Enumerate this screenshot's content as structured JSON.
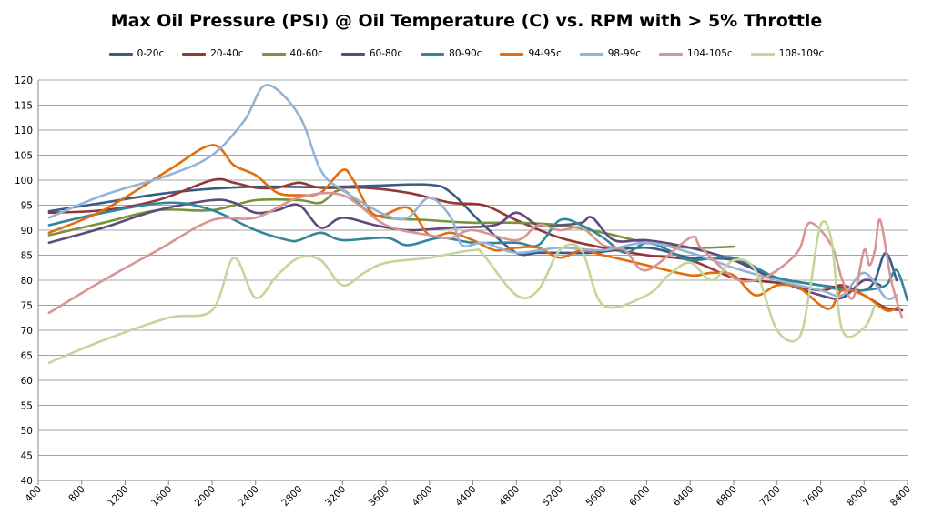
{
  "chart_data": {
    "type": "line",
    "title": "Max Oil Pressure (PSI) @ Oil Temperature (C) vs. RPM with > 5% Throttle",
    "xlabel": "",
    "ylabel": "",
    "xlim": [
      400,
      8400
    ],
    "ylim": [
      40,
      120
    ],
    "x_ticks": [
      400,
      800,
      1200,
      1600,
      2000,
      2400,
      2800,
      3200,
      3600,
      4000,
      4400,
      4800,
      5200,
      5600,
      6000,
      6400,
      6800,
      7200,
      7600,
      8000,
      8400
    ],
    "y_ticks": [
      40,
      45,
      50,
      55,
      60,
      65,
      70,
      75,
      80,
      85,
      90,
      95,
      100,
      105,
      110,
      115,
      120
    ],
    "grid": "horizontal",
    "legend": "top",
    "smooth": true,
    "series": [
      {
        "name": "0-20c",
        "color": "#385D8A",
        "points": [
          [
            500,
            93.8
          ],
          [
            1000,
            95.5
          ],
          [
            1500,
            97.2
          ],
          [
            2000,
            98.3
          ],
          [
            2500,
            98.7
          ],
          [
            3000,
            98.6
          ],
          [
            3500,
            98.9
          ],
          [
            4000,
            99.1
          ],
          [
            4200,
            97.5
          ],
          [
            4500,
            91
          ],
          [
            4800,
            85.5
          ],
          [
            5000,
            85.5
          ],
          [
            5200,
            85.5
          ],
          [
            5500,
            85.5
          ],
          [
            6000,
            86.5
          ],
          [
            6400,
            84.5
          ],
          [
            6800,
            84
          ],
          [
            7200,
            80.5
          ],
          [
            7600,
            79
          ],
          [
            7800,
            78.5
          ],
          [
            8000,
            78
          ],
          [
            8100,
            80
          ],
          [
            8200,
            85.5
          ],
          [
            8300,
            80
          ]
        ]
      },
      {
        "name": "20-40c",
        "color": "#953735",
        "points": [
          [
            500,
            93.5
          ],
          [
            1000,
            94
          ],
          [
            1500,
            96
          ],
          [
            2000,
            100
          ],
          [
            2200,
            99.5
          ],
          [
            2400,
            98.5
          ],
          [
            2600,
            98.5
          ],
          [
            2800,
            99.5
          ],
          [
            3000,
            98.5
          ],
          [
            3400,
            98.5
          ],
          [
            3800,
            97.5
          ],
          [
            4200,
            95.5
          ],
          [
            4500,
            95
          ],
          [
            4800,
            92
          ],
          [
            5200,
            88.5
          ],
          [
            5600,
            86.5
          ],
          [
            6000,
            85
          ],
          [
            6400,
            84
          ],
          [
            6800,
            80.5
          ],
          [
            7200,
            79.5
          ],
          [
            7600,
            78
          ],
          [
            7800,
            79
          ],
          [
            8000,
            77
          ],
          [
            8200,
            74.5
          ],
          [
            8350,
            74
          ]
        ]
      },
      {
        "name": "40-60c",
        "color": "#77933C",
        "points": [
          [
            500,
            89
          ],
          [
            1000,
            91.5
          ],
          [
            1500,
            94
          ],
          [
            2000,
            94
          ],
          [
            2400,
            96
          ],
          [
            2800,
            96
          ],
          [
            3000,
            95.5
          ],
          [
            3200,
            98
          ],
          [
            3500,
            93
          ],
          [
            4000,
            92
          ],
          [
            4400,
            91.5
          ],
          [
            4800,
            91.5
          ],
          [
            5200,
            91
          ],
          [
            5600,
            89.5
          ],
          [
            6000,
            87.5
          ],
          [
            6400,
            86.5
          ],
          [
            6800,
            86.7
          ]
        ]
      },
      {
        "name": "60-80c",
        "color": "#604A7B",
        "points": [
          [
            500,
            87.5
          ],
          [
            1000,
            90.5
          ],
          [
            1500,
            94
          ],
          [
            2000,
            96
          ],
          [
            2200,
            95.5
          ],
          [
            2400,
            93.5
          ],
          [
            2600,
            94
          ],
          [
            2800,
            95
          ],
          [
            3000,
            90.5
          ],
          [
            3200,
            92.5
          ],
          [
            3500,
            91
          ],
          [
            3800,
            90
          ],
          [
            4200,
            90.5
          ],
          [
            4600,
            91
          ],
          [
            4800,
            93.5
          ],
          [
            5000,
            91
          ],
          [
            5200,
            91
          ],
          [
            5400,
            91.5
          ],
          [
            5500,
            92.5
          ],
          [
            5700,
            88
          ],
          [
            6000,
            88
          ],
          [
            6400,
            86.5
          ],
          [
            6800,
            84
          ],
          [
            7200,
            80
          ],
          [
            7600,
            77
          ],
          [
            7800,
            76.5
          ],
          [
            8000,
            80
          ],
          [
            8150,
            79
          ]
        ]
      },
      {
        "name": "80-90c",
        "color": "#31859C",
        "points": [
          [
            500,
            91
          ],
          [
            1000,
            93.5
          ],
          [
            1600,
            95.5
          ],
          [
            2000,
            94
          ],
          [
            2400,
            90
          ],
          [
            2700,
            88
          ],
          [
            2800,
            88
          ],
          [
            3000,
            89.5
          ],
          [
            3200,
            88
          ],
          [
            3600,
            88.5
          ],
          [
            3800,
            87
          ],
          [
            4100,
            88.5
          ],
          [
            4400,
            87.5
          ],
          [
            4800,
            87.5
          ],
          [
            5000,
            87
          ],
          [
            5200,
            92
          ],
          [
            5400,
            91
          ],
          [
            5600,
            88.5
          ],
          [
            5800,
            85.5
          ],
          [
            6000,
            87.5
          ],
          [
            6200,
            86
          ],
          [
            6400,
            84
          ],
          [
            6800,
            84.5
          ],
          [
            7200,
            80.5
          ],
          [
            7600,
            79
          ],
          [
            7800,
            78
          ],
          [
            8000,
            78
          ],
          [
            8200,
            79
          ],
          [
            8300,
            82
          ],
          [
            8400,
            76
          ]
        ]
      },
      {
        "name": "94-95c",
        "color": "#E46C0A",
        "points": [
          [
            500,
            89.5
          ],
          [
            1000,
            94
          ],
          [
            1600,
            102
          ],
          [
            2000,
            107
          ],
          [
            2200,
            103
          ],
          [
            2400,
            101
          ],
          [
            2600,
            97.5
          ],
          [
            2800,
            97
          ],
          [
            3000,
            97.5
          ],
          [
            3200,
            102
          ],
          [
            3300,
            100
          ],
          [
            3500,
            93
          ],
          [
            3800,
            94.5
          ],
          [
            4000,
            89
          ],
          [
            4200,
            89.5
          ],
          [
            4400,
            88
          ],
          [
            4600,
            86
          ],
          [
            4800,
            86.5
          ],
          [
            5000,
            86.5
          ],
          [
            5200,
            84.5
          ],
          [
            5400,
            86
          ],
          [
            5600,
            85
          ],
          [
            6000,
            83
          ],
          [
            6400,
            81
          ],
          [
            6600,
            81.5
          ],
          [
            6800,
            81
          ],
          [
            7000,
            77
          ],
          [
            7200,
            79
          ],
          [
            7400,
            78.5
          ],
          [
            7600,
            75
          ],
          [
            7700,
            74.5
          ],
          [
            7800,
            78
          ],
          [
            8000,
            77
          ],
          [
            8200,
            74
          ],
          [
            8300,
            74.5
          ]
        ]
      },
      {
        "name": "98-99c",
        "color": "#95B3D7",
        "points": [
          [
            500,
            92.5
          ],
          [
            1000,
            97
          ],
          [
            1600,
            101
          ],
          [
            2000,
            105
          ],
          [
            2300,
            112
          ],
          [
            2500,
            119
          ],
          [
            2800,
            113
          ],
          [
            3000,
            102
          ],
          [
            3200,
            98
          ],
          [
            3600,
            93
          ],
          [
            3800,
            92.5
          ],
          [
            4000,
            96.5
          ],
          [
            4200,
            92.5
          ],
          [
            4300,
            87
          ],
          [
            4500,
            87.5
          ],
          [
            4800,
            85.5
          ],
          [
            5200,
            86.5
          ],
          [
            5600,
            86
          ],
          [
            6000,
            87.5
          ],
          [
            6400,
            85.5
          ],
          [
            6800,
            82.5
          ],
          [
            7200,
            80
          ],
          [
            7600,
            78
          ],
          [
            7800,
            77
          ],
          [
            8000,
            81.5
          ],
          [
            8200,
            76.5
          ],
          [
            8300,
            77
          ]
        ]
      },
      {
        "name": "104-105c",
        "color": "#D99594",
        "points": [
          [
            500,
            73.5
          ],
          [
            1000,
            80
          ],
          [
            1500,
            86
          ],
          [
            2000,
            92
          ],
          [
            2400,
            92.5
          ],
          [
            2800,
            96.5
          ],
          [
            3200,
            97
          ],
          [
            3600,
            91
          ],
          [
            4000,
            89
          ],
          [
            4200,
            88.5
          ],
          [
            4400,
            90
          ],
          [
            4800,
            88
          ],
          [
            5000,
            91
          ],
          [
            5200,
            90
          ],
          [
            5400,
            90.5
          ],
          [
            5600,
            87
          ],
          [
            5800,
            86
          ],
          [
            6000,
            82
          ],
          [
            6400,
            88.5
          ],
          [
            6500,
            86.5
          ],
          [
            6800,
            80.5
          ],
          [
            7000,
            80
          ],
          [
            7200,
            82
          ],
          [
            7400,
            86
          ],
          [
            7500,
            91.5
          ],
          [
            7700,
            87
          ],
          [
            7800,
            80
          ],
          [
            7900,
            76.5
          ],
          [
            8000,
            86
          ],
          [
            8050,
            83
          ],
          [
            8100,
            86
          ],
          [
            8150,
            92
          ],
          [
            8250,
            80
          ],
          [
            8350,
            72.5
          ]
        ]
      },
      {
        "name": "108-109c",
        "color": "#C3D69B",
        "points": [
          [
            500,
            63.5
          ],
          [
            1000,
            68
          ],
          [
            1600,
            72.5
          ],
          [
            2000,
            74
          ],
          [
            2200,
            84.5
          ],
          [
            2400,
            76.5
          ],
          [
            2600,
            81
          ],
          [
            2800,
            84.5
          ],
          [
            3000,
            84
          ],
          [
            3200,
            79
          ],
          [
            3400,
            81.5
          ],
          [
            3600,
            83.5
          ],
          [
            4000,
            84.5
          ],
          [
            4400,
            86
          ],
          [
            4500,
            85
          ],
          [
            4800,
            77
          ],
          [
            5000,
            78
          ],
          [
            5200,
            86
          ],
          [
            5400,
            86
          ],
          [
            5600,
            75
          ],
          [
            6000,
            77
          ],
          [
            6200,
            81
          ],
          [
            6400,
            83.5
          ],
          [
            6600,
            80
          ],
          [
            6800,
            84
          ],
          [
            7000,
            82
          ],
          [
            7200,
            70
          ],
          [
            7400,
            68.5
          ],
          [
            7500,
            78
          ],
          [
            7600,
            91
          ],
          [
            7700,
            88
          ],
          [
            7800,
            70
          ],
          [
            8000,
            70.5
          ],
          [
            8100,
            75
          ]
        ]
      }
    ]
  }
}
